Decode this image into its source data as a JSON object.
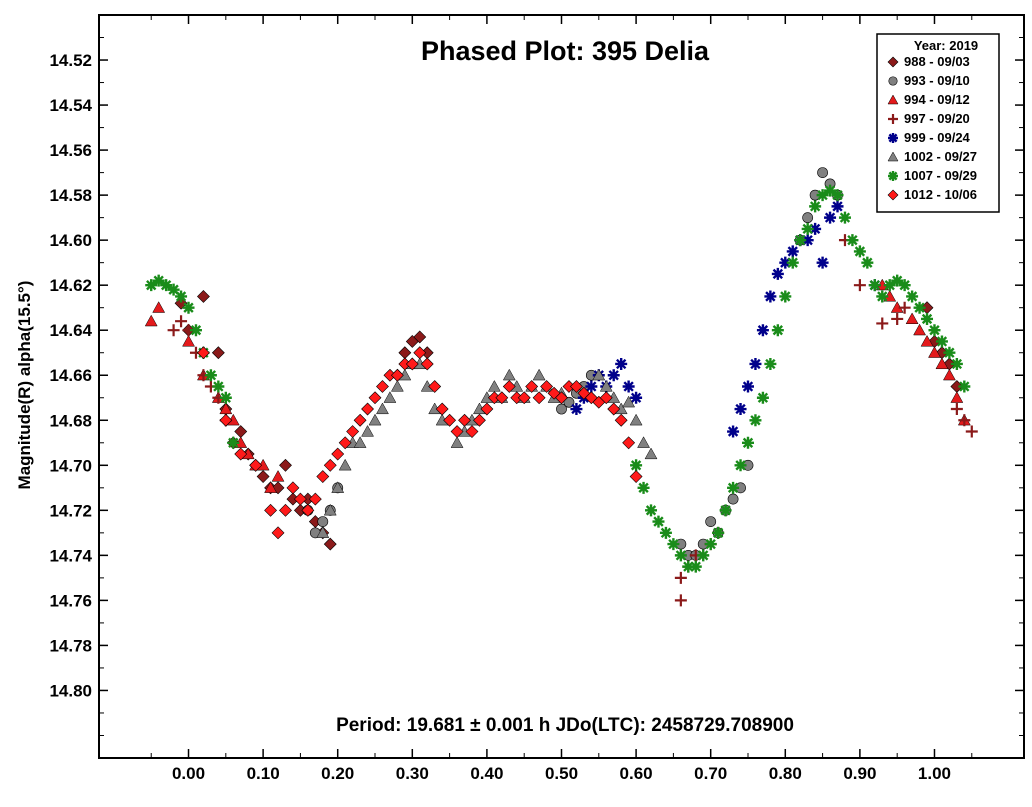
{
  "chart_data": {
    "type": "scatter",
    "title": "Phased Plot: 395 Delia",
    "ylabel": "Magnitude(R) alpha(15.5°)",
    "xlabel": "",
    "annotation": "Period: 19.681 ± 0.001 h  JDo(LTC): 2458729.708900",
    "xlim": [
      -0.12,
      1.12
    ],
    "ylim": [
      14.5,
      14.83
    ],
    "y_inverted": true,
    "x_ticks": [
      "0.00",
      "0.10",
      "0.20",
      "0.30",
      "0.40",
      "0.50",
      "0.60",
      "0.70",
      "0.80",
      "0.90",
      "1.00"
    ],
    "y_ticks": [
      "14.52",
      "14.54",
      "14.56",
      "14.58",
      "14.60",
      "14.62",
      "14.64",
      "14.66",
      "14.68",
      "14.70",
      "14.72",
      "14.74",
      "14.76",
      "14.78",
      "14.80"
    ],
    "legend_title": "Year: 2019",
    "legend_position": "top-right",
    "series": [
      {
        "name": "988 - 09/03",
        "marker": "diamond",
        "color": "#8b1a1a",
        "x": [
          -0.01,
          0.0,
          0.02,
          0.04,
          0.05,
          0.06,
          0.07,
          0.08,
          0.09,
          0.1,
          0.11,
          0.12,
          0.13,
          0.14,
          0.15,
          0.16,
          0.17,
          0.18,
          0.19,
          0.28,
          0.29,
          0.3,
          0.31,
          0.32,
          0.99,
          1.0,
          1.01,
          1.02,
          1.03
        ],
        "y": [
          14.628,
          14.64,
          14.625,
          14.65,
          14.675,
          14.69,
          14.685,
          14.695,
          14.7,
          14.705,
          14.71,
          14.71,
          14.7,
          14.715,
          14.72,
          14.715,
          14.725,
          14.73,
          14.735,
          14.66,
          14.65,
          14.645,
          14.643,
          14.65,
          14.63,
          14.645,
          14.65,
          14.655,
          14.665
        ]
      },
      {
        "name": "993 - 09/10",
        "marker": "circle",
        "color": "#808080",
        "x": [
          0.16,
          0.17,
          0.18,
          0.19,
          0.2,
          0.5,
          0.51,
          0.52,
          0.53,
          0.54,
          0.66,
          0.67,
          0.68,
          0.69,
          0.7,
          0.71,
          0.72,
          0.73,
          0.74,
          0.75,
          0.82,
          0.83,
          0.84,
          0.85,
          0.86,
          0.87
        ],
        "y": [
          14.72,
          14.73,
          14.725,
          14.72,
          14.71,
          14.675,
          14.672,
          14.668,
          14.665,
          14.66,
          14.735,
          14.74,
          14.74,
          14.735,
          14.725,
          14.73,
          14.72,
          14.715,
          14.71,
          14.7,
          14.6,
          14.59,
          14.58,
          14.57,
          14.575,
          14.58
        ]
      },
      {
        "name": "994 - 09/12",
        "marker": "triangle",
        "color": "#e31a1c",
        "x": [
          -0.05,
          -0.04,
          0.0,
          0.02,
          0.04,
          0.05,
          0.06,
          0.07,
          0.08,
          0.09,
          0.1,
          0.11,
          0.12,
          0.93,
          0.94,
          0.95,
          0.97,
          0.98,
          0.99,
          1.0,
          1.01,
          1.02,
          1.03,
          1.04
        ],
        "y": [
          14.636,
          14.63,
          14.645,
          14.66,
          14.67,
          14.675,
          14.68,
          14.69,
          14.695,
          14.7,
          14.7,
          14.71,
          14.705,
          14.62,
          14.625,
          14.63,
          14.635,
          14.64,
          14.645,
          14.65,
          14.655,
          14.66,
          14.67,
          14.68
        ]
      },
      {
        "name": "997 - 09/20",
        "marker": "plus",
        "color": "#8b1a1a",
        "x": [
          -0.02,
          -0.01,
          0.0,
          0.01,
          0.02,
          0.03,
          0.04,
          0.05,
          0.66,
          0.66,
          0.67,
          0.68,
          0.7,
          0.71,
          0.88,
          0.9,
          0.93,
          0.95,
          0.96,
          1.03,
          1.04,
          1.05
        ],
        "y": [
          14.64,
          14.636,
          14.64,
          14.65,
          14.66,
          14.665,
          14.67,
          14.68,
          14.76,
          14.75,
          14.745,
          14.74,
          14.735,
          14.73,
          14.6,
          14.62,
          14.637,
          14.635,
          14.63,
          14.675,
          14.68,
          14.685
        ]
      },
      {
        "name": "999 - 09/24",
        "marker": "asterisk",
        "color": "#00008b",
        "x": [
          0.52,
          0.53,
          0.54,
          0.55,
          0.56,
          0.57,
          0.58,
          0.59,
          0.6,
          0.73,
          0.74,
          0.75,
          0.76,
          0.77,
          0.78,
          0.79,
          0.8,
          0.81,
          0.82,
          0.83,
          0.84,
          0.85,
          0.86,
          0.87,
          0.92
        ],
        "y": [
          14.675,
          14.67,
          14.665,
          14.66,
          14.665,
          14.66,
          14.655,
          14.665,
          14.67,
          14.685,
          14.675,
          14.665,
          14.655,
          14.64,
          14.625,
          14.615,
          14.61,
          14.605,
          14.6,
          14.6,
          14.595,
          14.61,
          14.59,
          14.585,
          14.62
        ]
      },
      {
        "name": "1002 - 09/27",
        "marker": "triangle",
        "color": "#808080",
        "x": [
          0.18,
          0.19,
          0.2,
          0.21,
          0.22,
          0.23,
          0.24,
          0.25,
          0.26,
          0.27,
          0.28,
          0.29,
          0.3,
          0.31,
          0.32,
          0.33,
          0.34,
          0.36,
          0.37,
          0.38,
          0.39,
          0.4,
          0.41,
          0.42,
          0.43,
          0.44,
          0.45,
          0.46,
          0.47,
          0.48,
          0.49,
          0.5,
          0.55,
          0.56,
          0.57,
          0.58,
          0.59,
          0.6,
          0.61,
          0.62
        ],
        "y": [
          14.73,
          14.72,
          14.71,
          14.7,
          14.69,
          14.69,
          14.685,
          14.68,
          14.675,
          14.67,
          14.665,
          14.66,
          14.655,
          14.655,
          14.665,
          14.675,
          14.68,
          14.69,
          14.685,
          14.68,
          14.675,
          14.67,
          14.665,
          14.67,
          14.66,
          14.665,
          14.67,
          14.665,
          14.66,
          14.665,
          14.67,
          14.668,
          14.66,
          14.665,
          14.67,
          14.675,
          14.672,
          14.68,
          14.69,
          14.695
        ]
      },
      {
        "name": "1007 - 09/29",
        "marker": "asterisk",
        "color": "#1a8c1a",
        "x": [
          -0.05,
          -0.04,
          -0.03,
          -0.02,
          -0.01,
          0.0,
          0.01,
          0.02,
          0.03,
          0.04,
          0.05,
          0.06,
          0.6,
          0.61,
          0.62,
          0.63,
          0.64,
          0.65,
          0.66,
          0.67,
          0.68,
          0.69,
          0.7,
          0.71,
          0.72,
          0.73,
          0.74,
          0.75,
          0.76,
          0.77,
          0.78,
          0.79,
          0.8,
          0.81,
          0.82,
          0.83,
          0.84,
          0.85,
          0.86,
          0.87,
          0.88,
          0.89,
          0.9,
          0.91,
          0.92,
          0.93,
          0.94,
          0.95,
          0.96,
          0.97,
          0.98,
          0.99,
          1.0,
          1.01,
          1.02,
          1.03,
          1.04
        ],
        "y": [
          14.62,
          14.618,
          14.62,
          14.622,
          14.625,
          14.63,
          14.64,
          14.65,
          14.66,
          14.665,
          14.67,
          14.69,
          14.7,
          14.71,
          14.72,
          14.725,
          14.73,
          14.735,
          14.74,
          14.745,
          14.745,
          14.74,
          14.735,
          14.73,
          14.72,
          14.71,
          14.7,
          14.69,
          14.68,
          14.67,
          14.655,
          14.64,
          14.625,
          14.61,
          14.6,
          14.595,
          14.585,
          14.58,
          14.578,
          14.58,
          14.59,
          14.6,
          14.605,
          14.61,
          14.62,
          14.625,
          14.62,
          14.618,
          14.62,
          14.625,
          14.63,
          14.635,
          14.64,
          14.645,
          14.65,
          14.655,
          14.665
        ]
      },
      {
        "name": "1012 - 10/06",
        "marker": "diamond",
        "color": "#ff1a1a",
        "x": [
          0.02,
          0.05,
          0.07,
          0.09,
          0.11,
          0.12,
          0.13,
          0.14,
          0.15,
          0.16,
          0.17,
          0.18,
          0.19,
          0.2,
          0.21,
          0.22,
          0.23,
          0.24,
          0.25,
          0.26,
          0.27,
          0.28,
          0.29,
          0.3,
          0.31,
          0.32,
          0.33,
          0.34,
          0.35,
          0.36,
          0.37,
          0.38,
          0.39,
          0.4,
          0.41,
          0.42,
          0.43,
          0.44,
          0.45,
          0.46,
          0.47,
          0.48,
          0.49,
          0.5,
          0.51,
          0.52,
          0.53,
          0.54,
          0.55,
          0.56,
          0.57,
          0.58,
          0.59,
          0.6
        ],
        "y": [
          14.65,
          14.68,
          14.695,
          14.7,
          14.72,
          14.73,
          14.72,
          14.71,
          14.715,
          14.72,
          14.715,
          14.705,
          14.7,
          14.695,
          14.69,
          14.685,
          14.68,
          14.675,
          14.67,
          14.665,
          14.66,
          14.66,
          14.655,
          14.655,
          14.65,
          14.655,
          14.665,
          14.675,
          14.68,
          14.685,
          14.68,
          14.685,
          14.68,
          14.675,
          14.67,
          14.67,
          14.665,
          14.67,
          14.67,
          14.665,
          14.67,
          14.665,
          14.668,
          14.67,
          14.665,
          14.665,
          14.668,
          14.67,
          14.672,
          14.67,
          14.675,
          14.68,
          14.69,
          14.705
        ]
      }
    ]
  }
}
